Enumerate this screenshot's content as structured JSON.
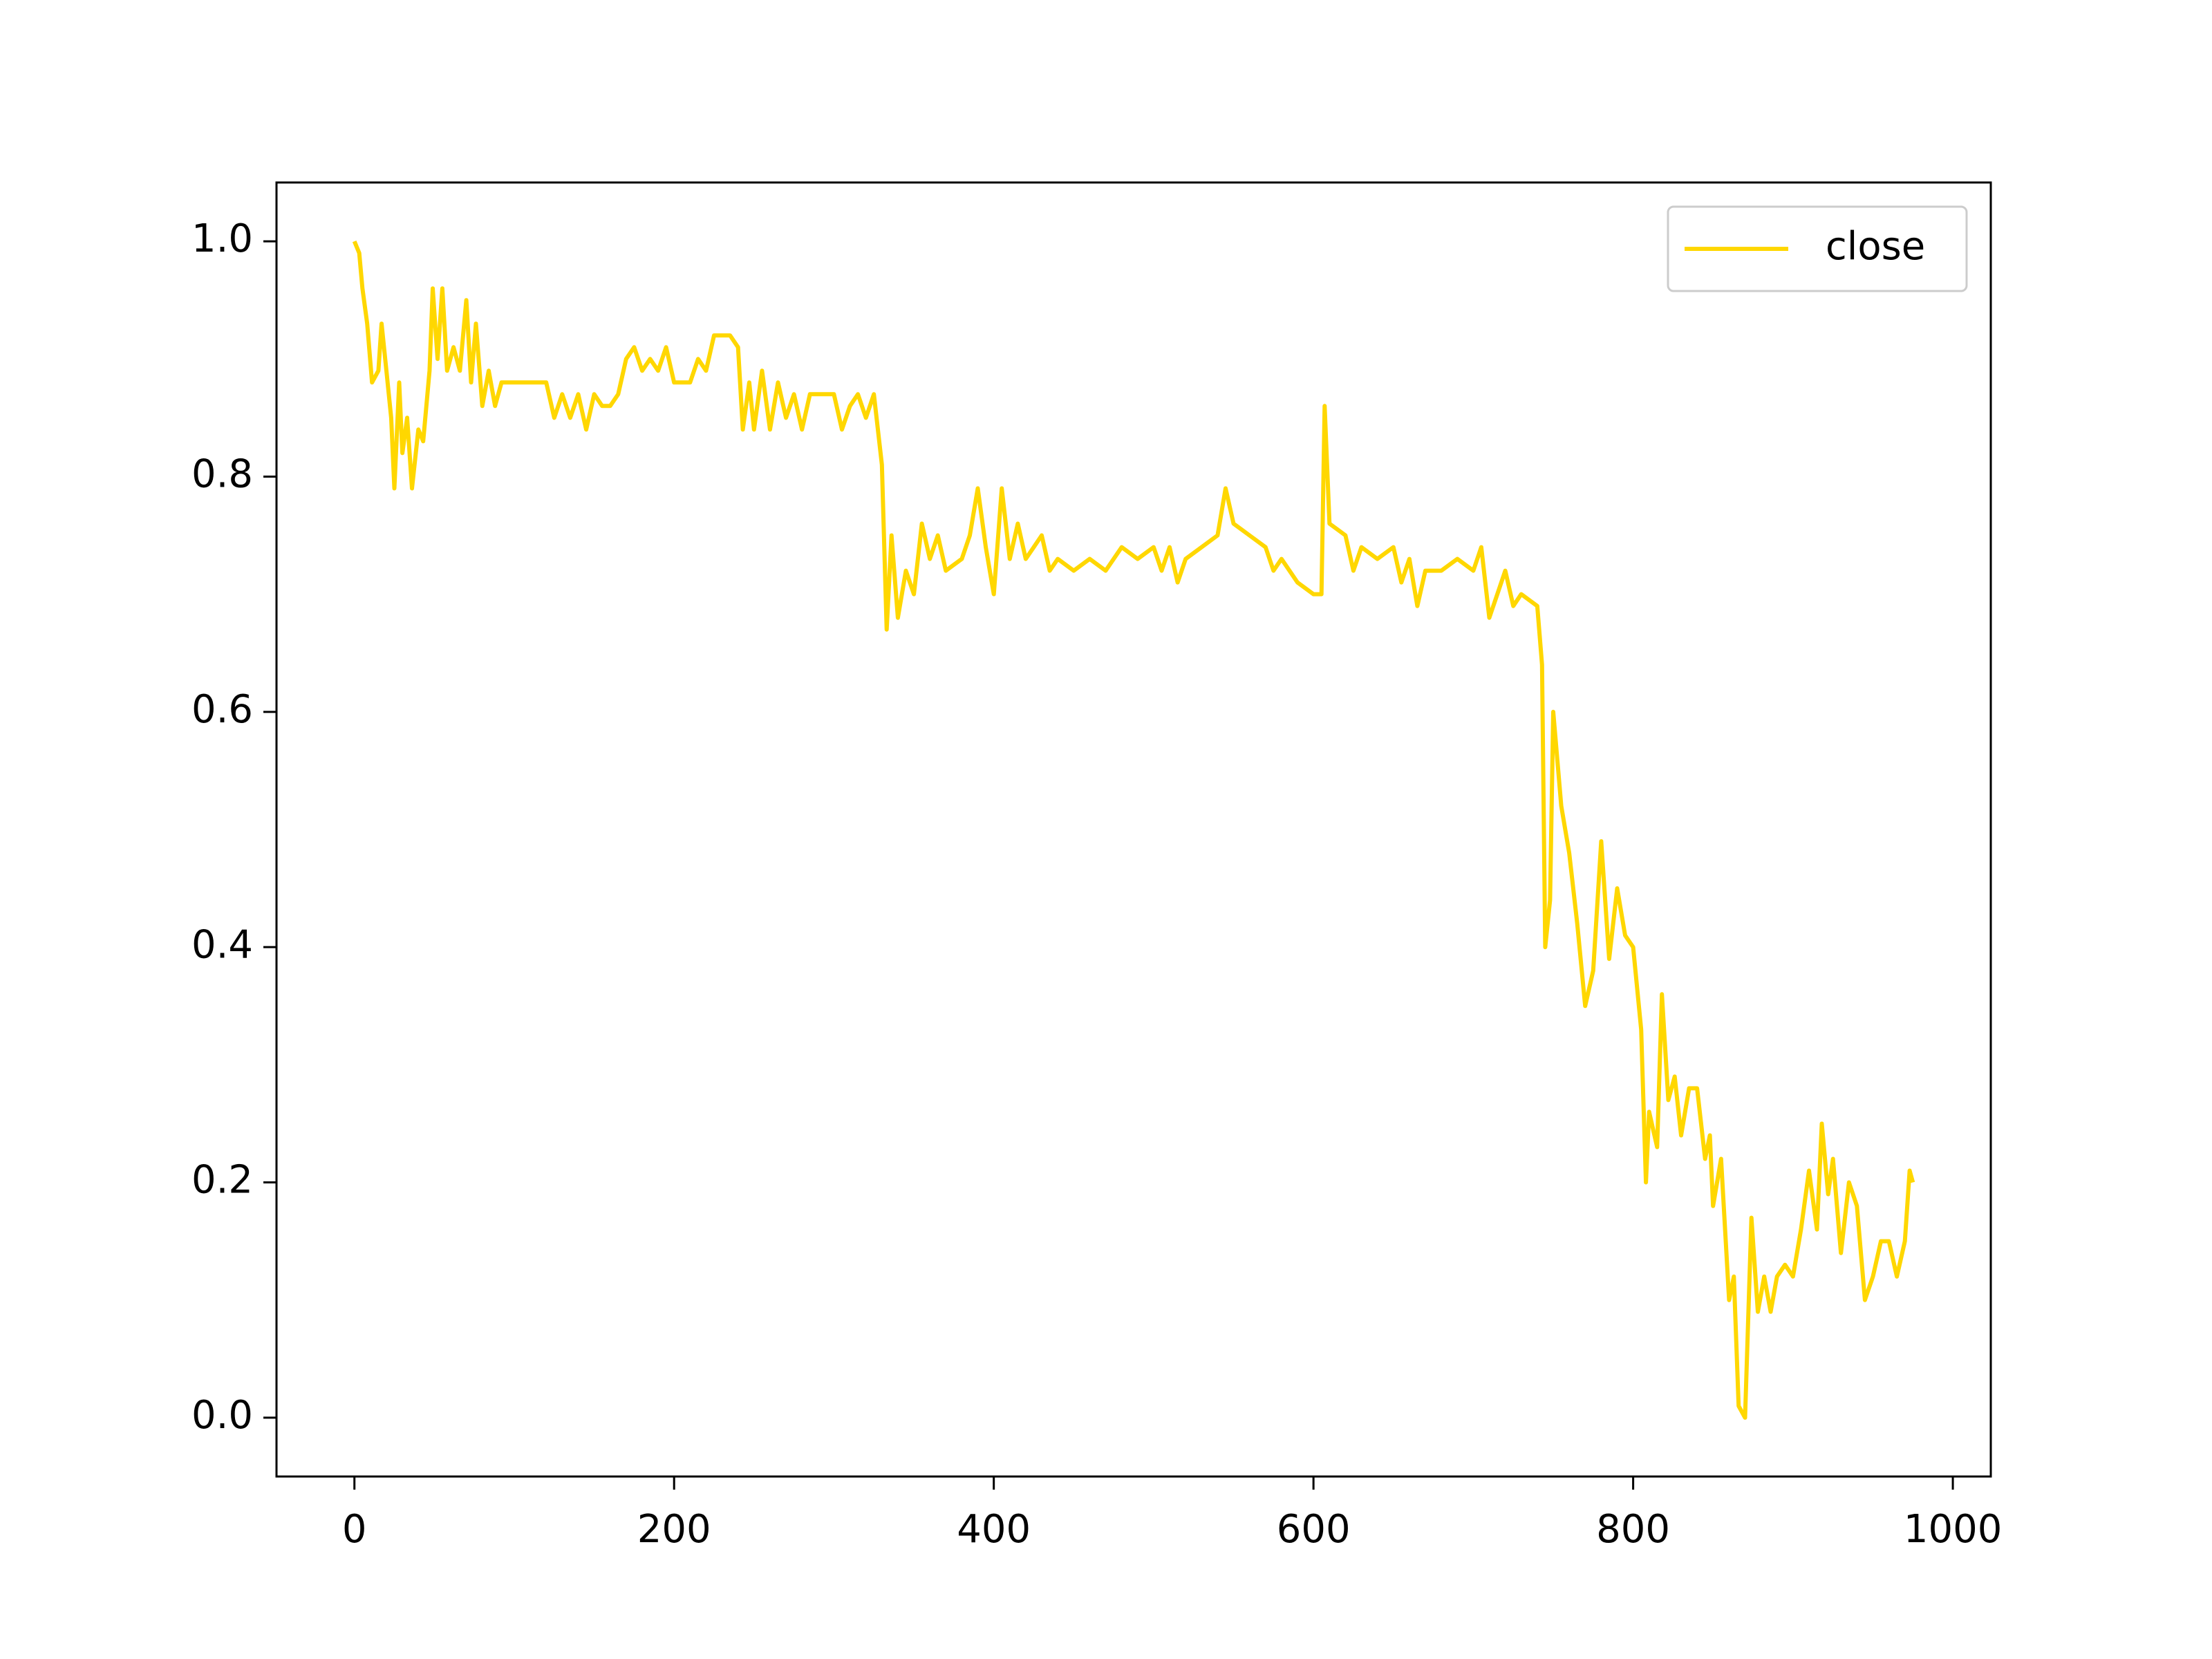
{
  "chart_data": {
    "type": "line",
    "x": [
      0,
      3,
      5,
      8,
      11,
      15,
      17,
      20,
      23,
      25,
      28,
      30,
      33,
      36,
      40,
      43,
      47,
      49,
      52,
      55,
      58,
      62,
      66,
      70,
      73,
      76,
      80,
      84,
      88,
      92,
      100,
      110,
      120,
      125,
      130,
      135,
      140,
      145,
      150,
      155,
      160,
      165,
      170,
      175,
      180,
      185,
      190,
      195,
      200,
      210,
      215,
      220,
      225,
      230,
      235,
      240,
      243,
      247,
      250,
      255,
      260,
      265,
      270,
      275,
      280,
      285,
      290,
      300,
      305,
      310,
      315,
      320,
      325,
      330,
      333,
      336,
      340,
      345,
      350,
      355,
      360,
      365,
      370,
      380,
      385,
      390,
      395,
      400,
      405,
      410,
      415,
      420,
      425,
      430,
      435,
      440,
      450,
      460,
      470,
      480,
      490,
      500,
      505,
      510,
      515,
      520,
      530,
      540,
      545,
      550,
      560,
      570,
      575,
      580,
      590,
      600,
      605,
      607,
      610,
      620,
      625,
      630,
      640,
      650,
      655,
      660,
      665,
      670,
      680,
      690,
      700,
      705,
      710,
      715,
      720,
      725,
      730,
      740,
      743,
      745,
      748,
      750,
      755,
      760,
      765,
      770,
      775,
      780,
      785,
      790,
      795,
      800,
      805,
      808,
      810,
      815,
      818,
      822,
      826,
      830,
      835,
      840,
      845,
      848,
      850,
      855,
      860,
      863,
      866,
      870,
      874,
      878,
      882,
      886,
      890,
      895,
      900,
      905,
      910,
      915,
      918,
      922,
      925,
      930,
      935,
      940,
      945,
      950,
      955,
      960,
      965,
      970,
      973,
      975
    ],
    "series": [
      {
        "name": "close",
        "color": "#ffd700",
        "values": [
          1.0,
          0.99,
          0.96,
          0.93,
          0.88,
          0.89,
          0.93,
          0.89,
          0.85,
          0.79,
          0.88,
          0.82,
          0.85,
          0.79,
          0.84,
          0.83,
          0.89,
          0.96,
          0.9,
          0.96,
          0.89,
          0.91,
          0.89,
          0.95,
          0.88,
          0.93,
          0.86,
          0.89,
          0.86,
          0.88,
          0.88,
          0.88,
          0.88,
          0.85,
          0.87,
          0.85,
          0.87,
          0.84,
          0.87,
          0.86,
          0.86,
          0.87,
          0.9,
          0.91,
          0.89,
          0.9,
          0.89,
          0.91,
          0.88,
          0.88,
          0.9,
          0.89,
          0.92,
          0.92,
          0.92,
          0.91,
          0.84,
          0.88,
          0.84,
          0.89,
          0.84,
          0.88,
          0.85,
          0.87,
          0.84,
          0.87,
          0.87,
          0.87,
          0.84,
          0.86,
          0.87,
          0.85,
          0.87,
          0.81,
          0.67,
          0.75,
          0.68,
          0.72,
          0.7,
          0.76,
          0.73,
          0.75,
          0.72,
          0.73,
          0.75,
          0.79,
          0.74,
          0.7,
          0.79,
          0.73,
          0.76,
          0.73,
          0.74,
          0.75,
          0.72,
          0.73,
          0.72,
          0.73,
          0.72,
          0.74,
          0.73,
          0.74,
          0.72,
          0.74,
          0.71,
          0.73,
          0.74,
          0.75,
          0.79,
          0.76,
          0.75,
          0.74,
          0.72,
          0.73,
          0.71,
          0.7,
          0.7,
          0.86,
          0.76,
          0.75,
          0.72,
          0.74,
          0.73,
          0.74,
          0.71,
          0.73,
          0.69,
          0.72,
          0.72,
          0.73,
          0.72,
          0.74,
          0.68,
          0.7,
          0.72,
          0.69,
          0.7,
          0.69,
          0.64,
          0.4,
          0.44,
          0.6,
          0.52,
          0.48,
          0.42,
          0.35,
          0.38,
          0.49,
          0.39,
          0.45,
          0.41,
          0.4,
          0.33,
          0.2,
          0.26,
          0.23,
          0.36,
          0.27,
          0.29,
          0.24,
          0.28,
          0.28,
          0.22,
          0.24,
          0.18,
          0.22,
          0.1,
          0.12,
          0.01,
          0.0,
          0.17,
          0.09,
          0.12,
          0.09,
          0.12,
          0.13,
          0.12,
          0.16,
          0.21,
          0.16,
          0.25,
          0.19,
          0.22,
          0.14,
          0.2,
          0.18,
          0.1,
          0.12,
          0.15,
          0.15,
          0.12,
          0.15,
          0.21,
          0.2
        ]
      }
    ],
    "xlim": [
      -48.75,
      1023.75
    ],
    "xticks": [
      0,
      200,
      400,
      600,
      800,
      1000
    ],
    "ylim": [
      -0.05,
      1.05
    ],
    "yticks": [
      {
        "value": 0,
        "label": "0.0"
      },
      0.2,
      0.4,
      0.6,
      0.8,
      {
        "value": 1,
        "label": "1.0"
      }
    ],
    "legend": "upper right"
  }
}
